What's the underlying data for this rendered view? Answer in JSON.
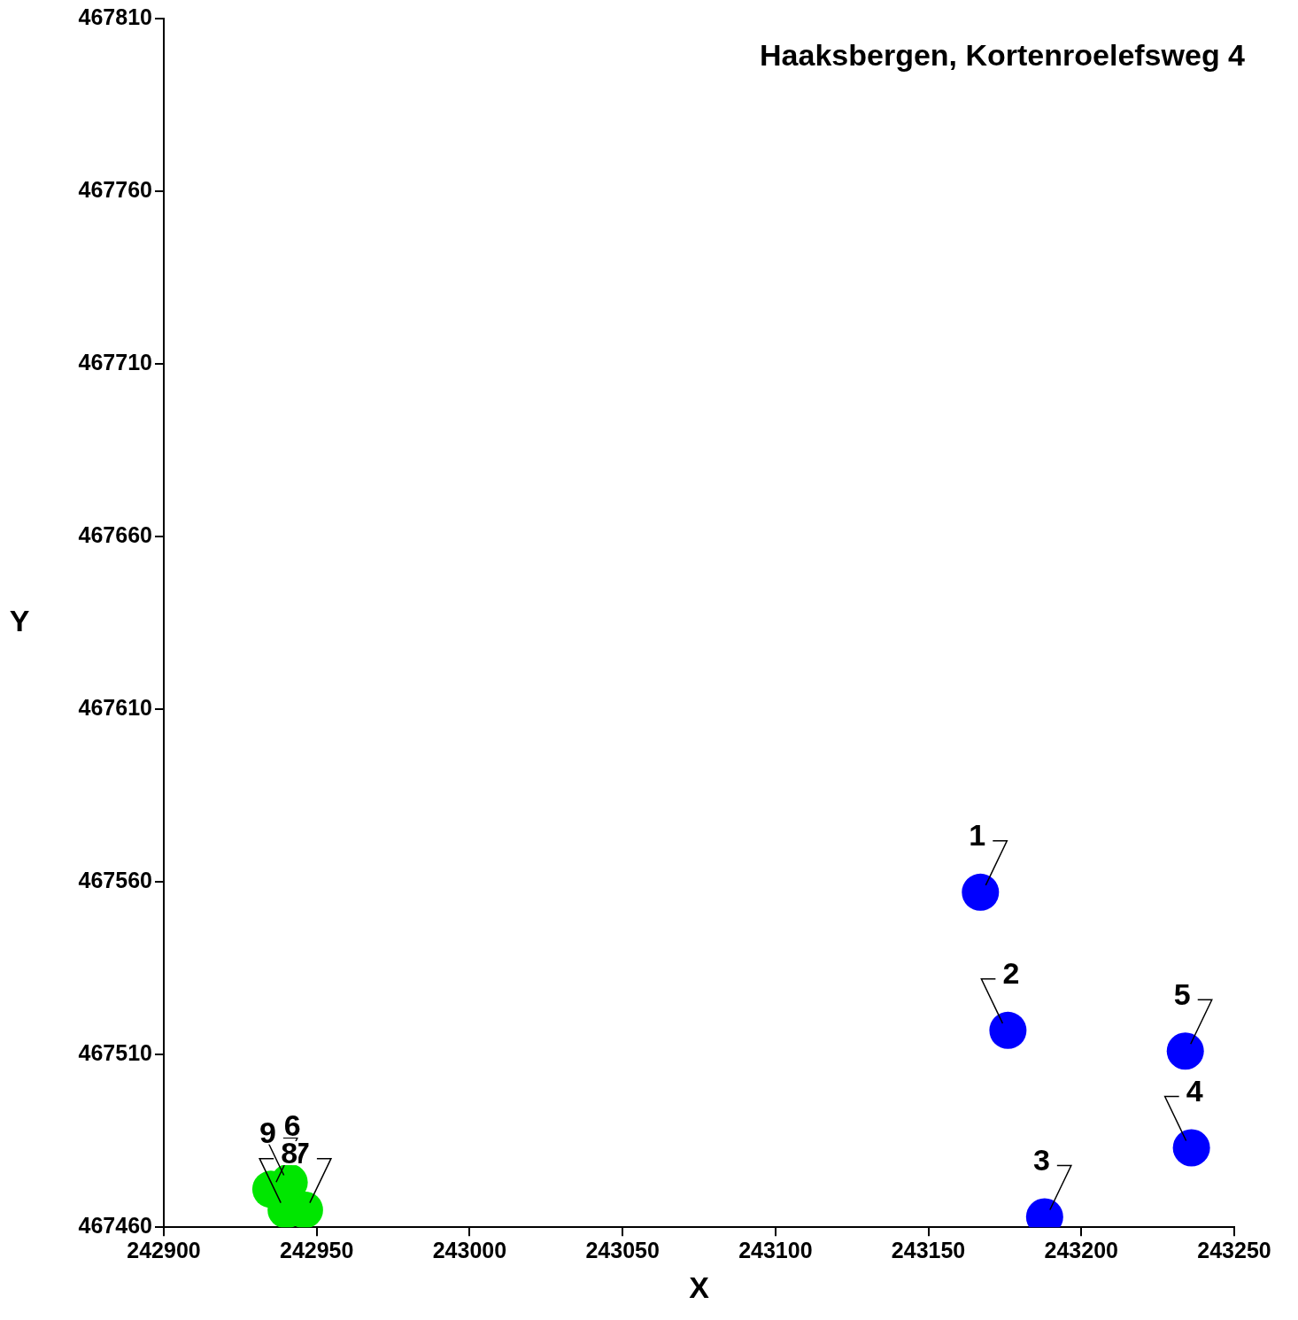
{
  "chart_data": {
    "type": "scatter",
    "title": "Haaksbergen, Kortenroelefsweg 4",
    "xlabel": "X",
    "ylabel": "Y",
    "xlim": [
      242900,
      243250
    ],
    "xticks": [
      242900,
      242950,
      243000,
      243050,
      243100,
      243150,
      243200,
      243250
    ],
    "ylim": [
      467460,
      467810
    ],
    "yticks": [
      467460,
      467510,
      467560,
      467610,
      467660,
      467710,
      467760,
      467810
    ],
    "grid": false,
    "legend": false,
    "marker": "circle",
    "series": [
      {
        "color": "#0000ff",
        "x": [
          243167,
          243176,
          243188,
          243236,
          243234
        ],
        "values": [
          467557,
          467517,
          467463,
          467483,
          467511
        ]
      },
      {
        "color": "#00e600",
        "x": [
          242941,
          242946,
          242940,
          242935
        ],
        "values": [
          467473,
          467465,
          467465,
          467471
        ]
      }
    ],
    "annotations": [
      {
        "text": "1",
        "x": 243167,
        "y": 467557
      },
      {
        "text": "2",
        "x": 243176,
        "y": 467517
      },
      {
        "text": "3",
        "x": 243188,
        "y": 467463
      },
      {
        "text": "4",
        "x": 243236,
        "y": 467483
      },
      {
        "text": "5",
        "x": 243234,
        "y": 467511
      },
      {
        "text": "6",
        "x": 242941,
        "y": 467473
      },
      {
        "text": "7",
        "x": 242946,
        "y": 467465
      },
      {
        "text": "8",
        "x": 242940,
        "y": 467465
      },
      {
        "text": "9",
        "x": 242935,
        "y": 467471
      }
    ]
  }
}
